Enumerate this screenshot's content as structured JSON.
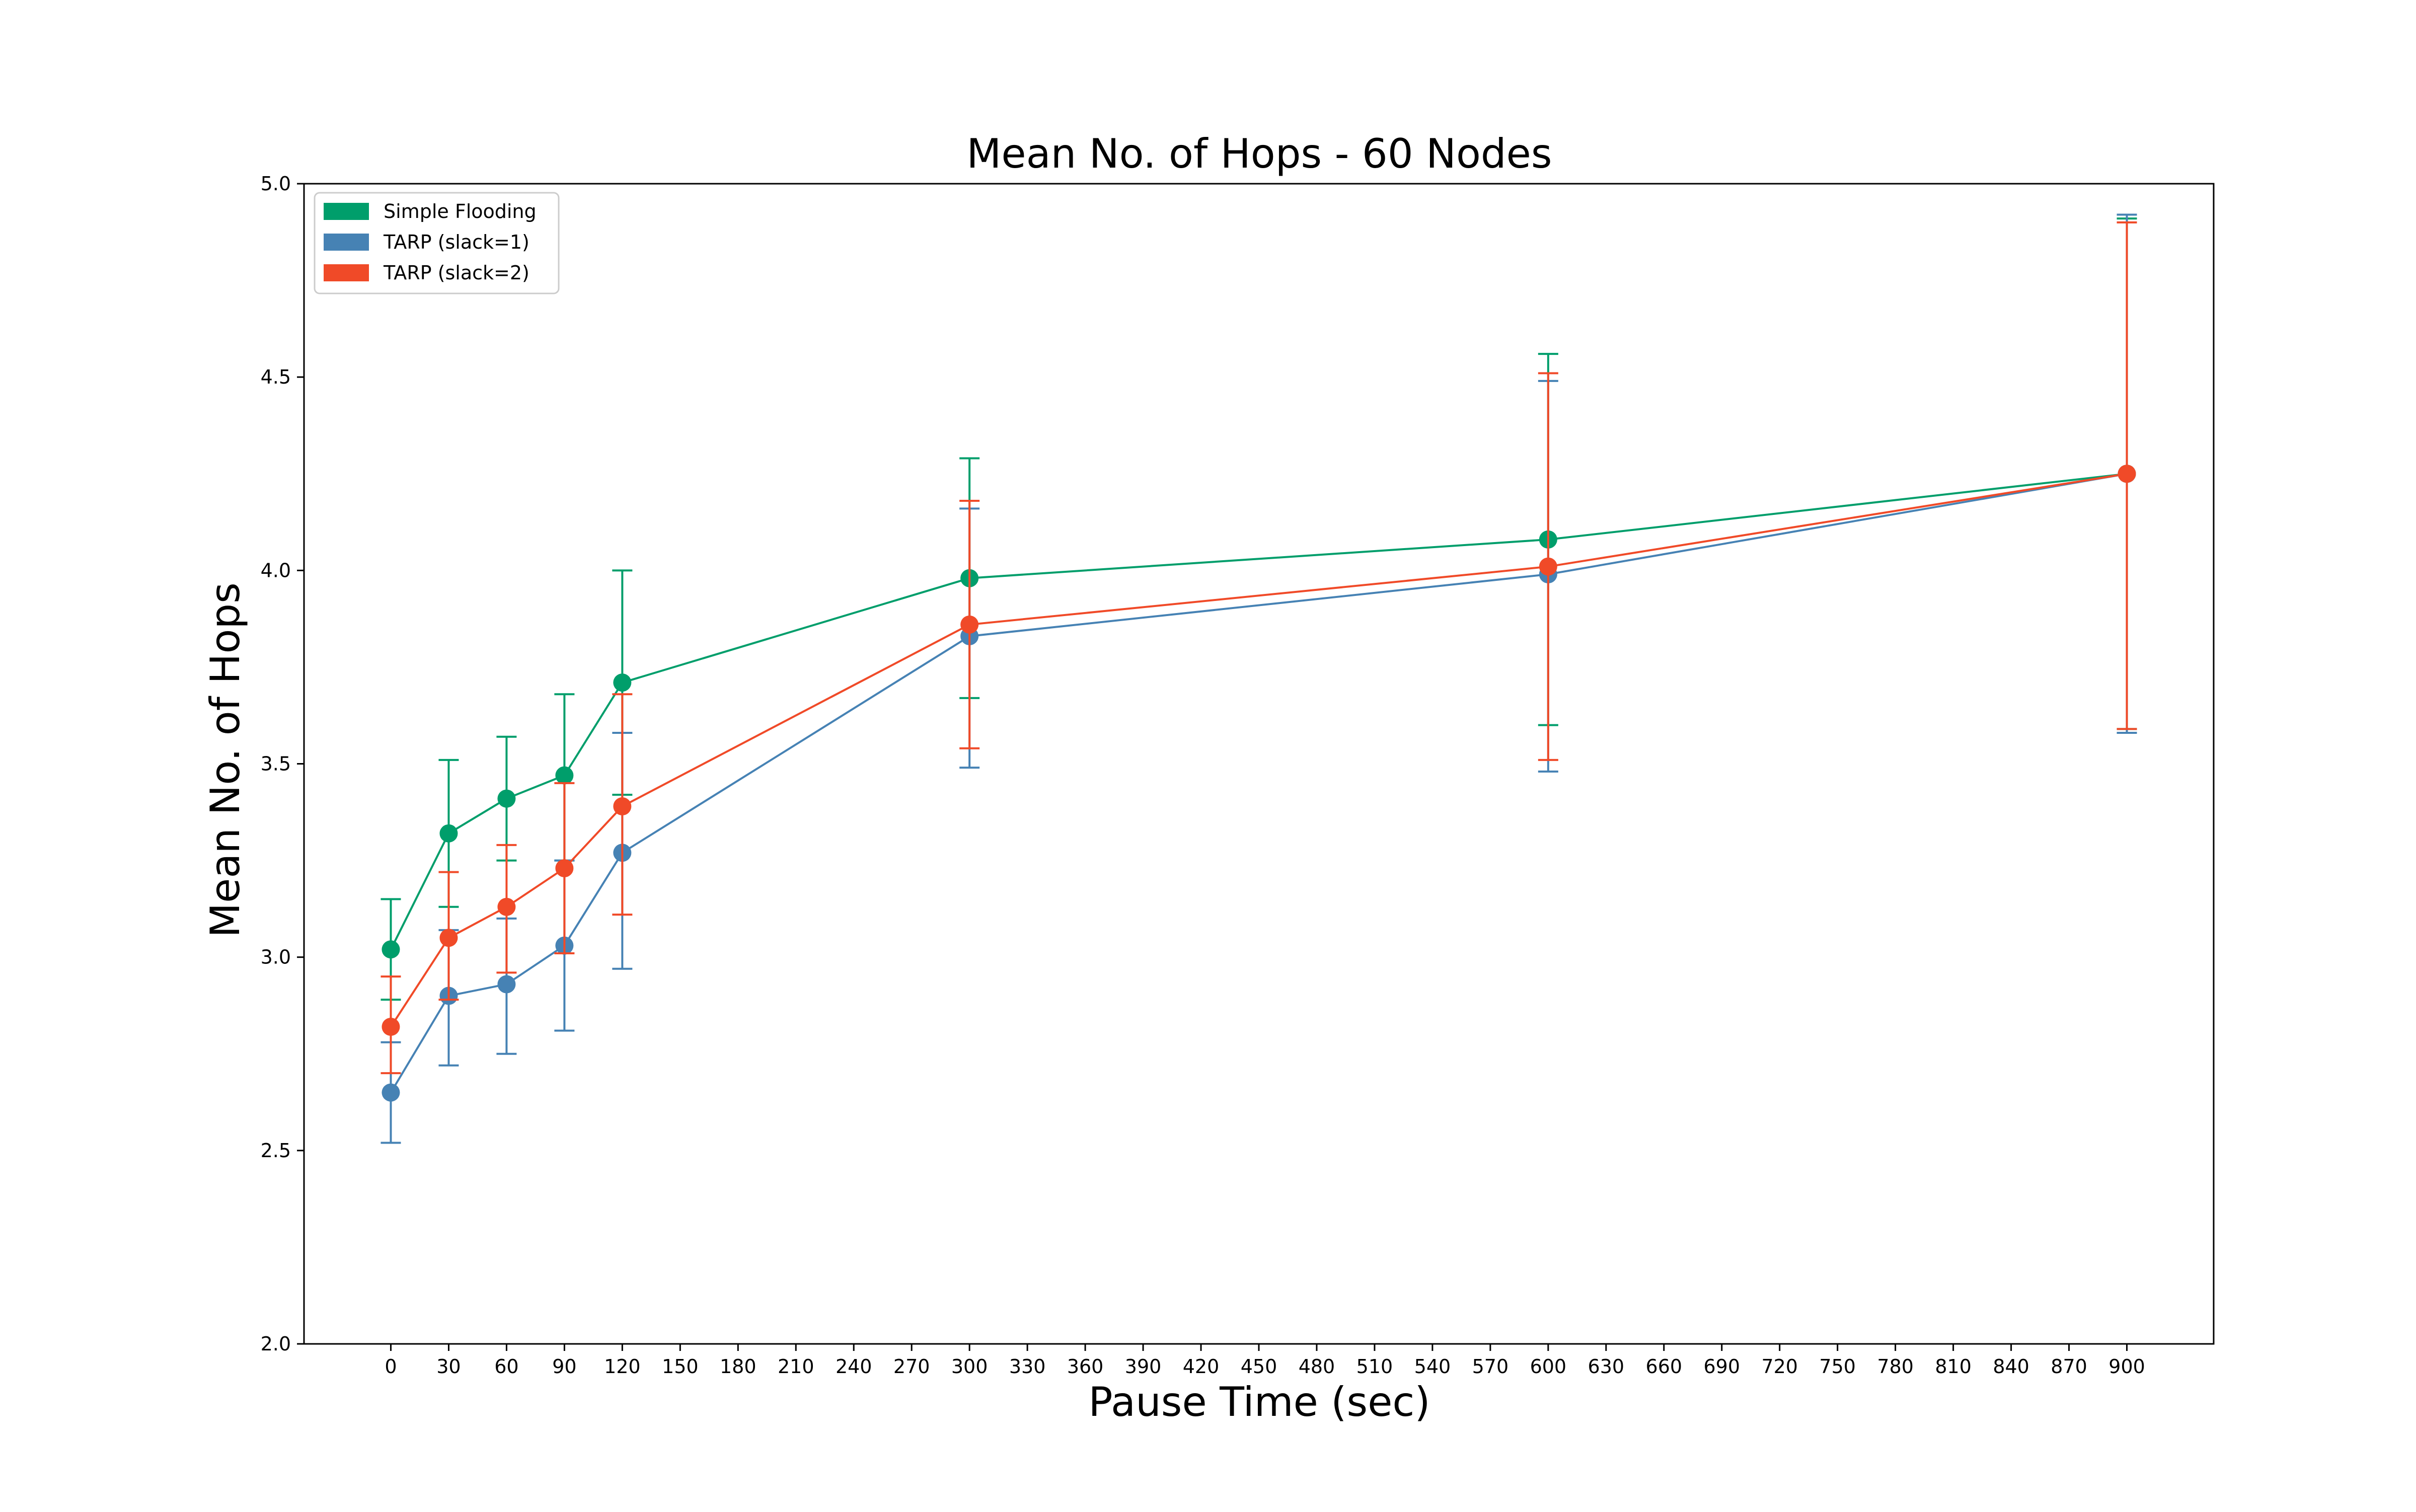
{
  "chart_data": {
    "type": "line",
    "title": "Mean No. of Hops - 60 Nodes",
    "xlabel": "Pause Time (sec)",
    "ylabel": "Mean No. of Hops",
    "x_ticks": [
      0,
      30,
      60,
      90,
      120,
      150,
      180,
      210,
      240,
      270,
      300,
      330,
      360,
      390,
      420,
      450,
      480,
      510,
      540,
      570,
      600,
      630,
      660,
      690,
      720,
      750,
      780,
      810,
      840,
      870,
      900
    ],
    "y_ticks": [
      "2.0",
      "2.5",
      "3.0",
      "3.5",
      "4.0",
      "4.5",
      "5.0"
    ],
    "xlim": [
      -45,
      945
    ],
    "ylim": [
      2.0,
      5.0
    ],
    "grid": false,
    "legend_position": "upper left",
    "x": [
      0,
      30,
      60,
      90,
      120,
      300,
      600,
      900
    ],
    "series": [
      {
        "name": "Simple Flooding",
        "color": "#009e6b",
        "values": [
          3.02,
          3.32,
          3.41,
          3.47,
          3.71,
          3.98,
          4.08,
          4.25
        ],
        "err_low": [
          2.89,
          3.13,
          3.25,
          3.25,
          3.42,
          3.67,
          3.6,
          3.59
        ],
        "err_high": [
          3.15,
          3.51,
          3.57,
          3.68,
          4.0,
          4.29,
          4.56,
          4.91
        ]
      },
      {
        "name": "TARP (slack=1)",
        "color": "#4682b4",
        "values": [
          2.65,
          2.9,
          2.93,
          3.03,
          3.27,
          3.83,
          3.99,
          4.25
        ],
        "err_low": [
          2.52,
          2.72,
          2.75,
          2.81,
          2.97,
          3.49,
          3.48,
          3.58
        ],
        "err_high": [
          2.78,
          3.07,
          3.1,
          3.25,
          3.58,
          4.16,
          4.49,
          4.92
        ]
      },
      {
        "name": "TARP (slack=2)",
        "color": "#f04a28",
        "values": [
          2.82,
          3.05,
          3.13,
          3.23,
          3.39,
          3.86,
          4.01,
          4.25
        ],
        "err_low": [
          2.7,
          2.89,
          2.96,
          3.01,
          3.11,
          3.54,
          3.51,
          3.59
        ],
        "err_high": [
          2.95,
          3.22,
          3.29,
          3.45,
          3.68,
          4.18,
          4.51,
          4.9
        ]
      }
    ]
  }
}
